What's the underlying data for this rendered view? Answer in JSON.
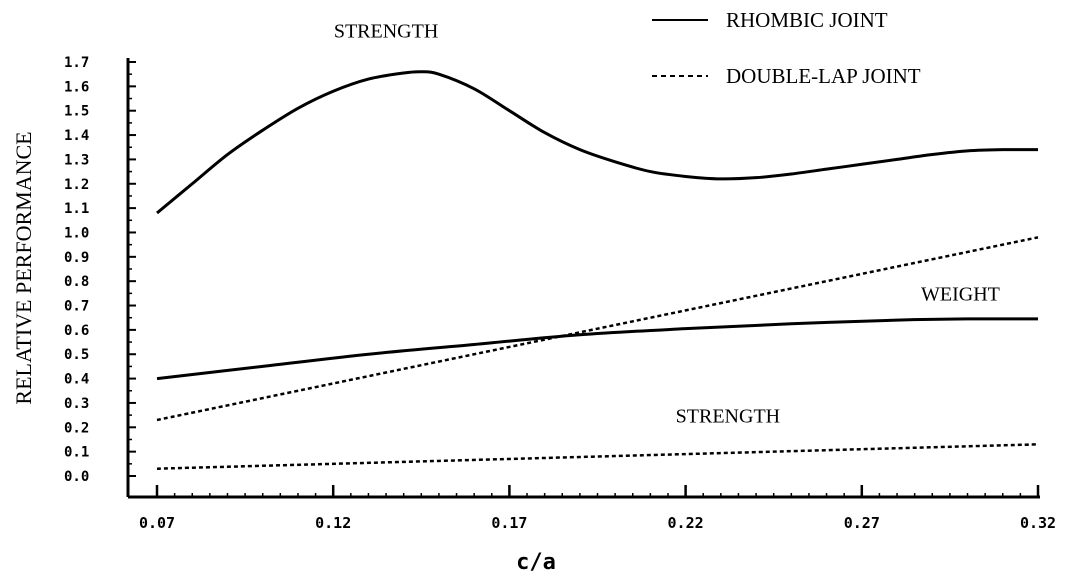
{
  "chart_data": {
    "type": "line",
    "title": "",
    "xlabel": "c/a",
    "ylabel": "RELATIVE PERFORMANCE",
    "xlim": [
      0.07,
      0.32
    ],
    "ylim": [
      0.0,
      1.7
    ],
    "x_tick_labels": [
      "0.07",
      "0.12",
      "0.17",
      "0.22",
      "0.27",
      "0.32"
    ],
    "y_tick_labels": [
      "0.0",
      "0.1",
      "0.2",
      "0.3",
      "0.4",
      "0.5",
      "0.6",
      "0.7",
      "0.8",
      "0.9",
      "1.0",
      "1.1",
      "1.2",
      "1.3",
      "1.4",
      "1.5",
      "1.6",
      "1.7"
    ],
    "grid": false,
    "legend": {
      "placement": "top-right",
      "entries": [
        {
          "label": "RHOMBIC JOINT",
          "style": "solid"
        },
        {
          "label": "DOUBLE-LAP JOINT",
          "style": "dashed"
        }
      ]
    },
    "series": [
      {
        "joint": "RHOMBIC JOINT",
        "style": "solid",
        "annotation": "STRENGTH",
        "x": [
          0.07,
          0.08,
          0.09,
          0.1,
          0.11,
          0.12,
          0.13,
          0.14,
          0.145,
          0.15,
          0.16,
          0.17,
          0.18,
          0.19,
          0.2,
          0.21,
          0.22,
          0.23,
          0.24,
          0.25,
          0.26,
          0.27,
          0.28,
          0.29,
          0.3,
          0.31,
          0.32
        ],
        "y": [
          1.08,
          1.2,
          1.32,
          1.42,
          1.51,
          1.58,
          1.63,
          1.655,
          1.66,
          1.65,
          1.59,
          1.5,
          1.41,
          1.34,
          1.29,
          1.25,
          1.23,
          1.22,
          1.225,
          1.24,
          1.26,
          1.28,
          1.3,
          1.32,
          1.335,
          1.34,
          1.34
        ]
      },
      {
        "joint": "RHOMBIC JOINT",
        "style": "solid",
        "annotation": "WEIGHT",
        "x": [
          0.07,
          0.1,
          0.13,
          0.16,
          0.19,
          0.22,
          0.25,
          0.28,
          0.3,
          0.32
        ],
        "y": [
          0.4,
          0.45,
          0.5,
          0.54,
          0.58,
          0.605,
          0.625,
          0.64,
          0.645,
          0.645
        ]
      },
      {
        "joint": "DOUBLE-LAP JOINT",
        "style": "dashed",
        "annotation": "",
        "x": [
          0.07,
          0.12,
          0.17,
          0.22,
          0.27,
          0.32
        ],
        "y": [
          0.23,
          0.38,
          0.53,
          0.68,
          0.83,
          0.98
        ]
      },
      {
        "joint": "DOUBLE-LAP JOINT",
        "style": "dashed",
        "annotation": "STRENGTH",
        "x": [
          0.07,
          0.12,
          0.17,
          0.22,
          0.27,
          0.32
        ],
        "y": [
          0.03,
          0.05,
          0.07,
          0.09,
          0.11,
          0.13
        ]
      }
    ],
    "annotations": [
      {
        "text": "STRENGTH",
        "x": 0.135,
        "y": 1.8
      },
      {
        "text": "WEIGHT",
        "x": 0.298,
        "y": 0.72
      },
      {
        "text": "STRENGTH",
        "x": 0.232,
        "y": 0.22
      }
    ]
  }
}
